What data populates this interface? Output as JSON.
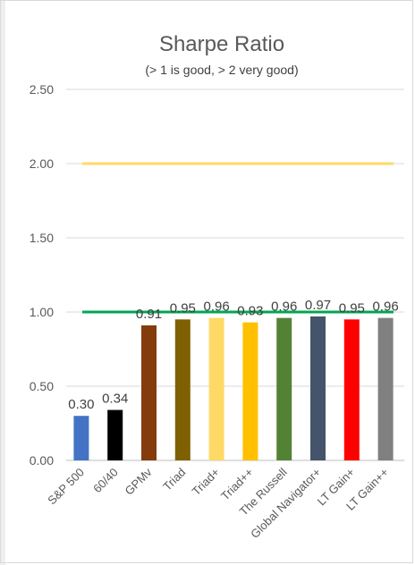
{
  "chart_data": {
    "type": "bar",
    "title": "Sharpe Ratio",
    "subtitle": "(> 1 is good, > 2 very good)",
    "categories": [
      "S&P 500",
      "60/40",
      "GPMv",
      "Triad",
      "Triad+",
      "Triad++",
      "The Russell",
      "Global Navigator+",
      "LT Gain+",
      "LT Gain++"
    ],
    "values": [
      0.3,
      0.34,
      0.91,
      0.95,
      0.96,
      0.93,
      0.96,
      0.97,
      0.95,
      0.96
    ],
    "value_labels": [
      "0.30",
      "0.34",
      "0.91",
      "0.95",
      "0.96",
      "0.93",
      "0.96",
      "0.97",
      "0.95",
      "0.96"
    ],
    "bar_colors": [
      "#4472C4",
      "#000000",
      "#843C0C",
      "#7F6000",
      "#FFD966",
      "#FFC000",
      "#548235",
      "#44546A",
      "#FF0000",
      "#808080"
    ],
    "ylim": [
      0,
      2.5
    ],
    "yticks": [
      "0.00",
      "0.50",
      "1.00",
      "1.50",
      "2.00",
      "2.50"
    ],
    "reference_lines": [
      {
        "y": 2.0,
        "color": "#FFD966"
      },
      {
        "y": 1.0,
        "color": "#00A651"
      }
    ],
    "gridlines": true,
    "xlabel": "",
    "ylabel": ""
  }
}
